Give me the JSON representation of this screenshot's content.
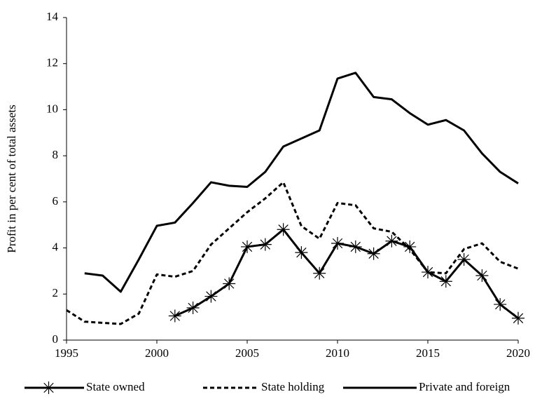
{
  "chart_data": {
    "type": "line",
    "y_label": "Profit in per cent of total assets",
    "x": [
      1995,
      1996,
      1997,
      1998,
      1999,
      2000,
      2001,
      2002,
      2003,
      2004,
      2005,
      2006,
      2007,
      2008,
      2009,
      2010,
      2011,
      2012,
      2013,
      2014,
      2015,
      2016,
      2017,
      2018,
      2019,
      2020
    ],
    "xlim": [
      1995,
      2020
    ],
    "xticks": [
      1995,
      2000,
      2005,
      2010,
      2015,
      2020
    ],
    "ylim": [
      0,
      14
    ],
    "yticks": [
      0,
      2,
      4,
      6,
      8,
      10,
      12,
      14
    ],
    "grid": false,
    "legend": "bottom",
    "series": [
      {
        "name": "State owned",
        "color": "#000000",
        "line_style": "solid",
        "marker": "asterisk",
        "values": [
          null,
          null,
          null,
          null,
          null,
          null,
          1.05,
          1.4,
          1.9,
          2.45,
          4.05,
          4.15,
          4.8,
          3.8,
          2.9,
          4.2,
          4.05,
          3.75,
          4.3,
          4.05,
          2.95,
          2.55,
          3.5,
          2.8,
          1.55,
          0.95
        ]
      },
      {
        "name": "State holding",
        "color": "#000000",
        "line_style": "dashed",
        "marker": "none",
        "values": [
          1.3,
          0.8,
          0.75,
          0.7,
          1.15,
          2.85,
          2.75,
          3.0,
          4.15,
          4.85,
          5.55,
          6.15,
          6.85,
          4.95,
          4.4,
          5.95,
          5.85,
          4.85,
          4.7,
          3.95,
          2.95,
          2.9,
          3.95,
          4.2,
          3.4,
          3.1
        ]
      },
      {
        "name": "Private and foreign",
        "color": "#000000",
        "line_style": "solid",
        "marker": "none",
        "values": [
          null,
          2.9,
          2.8,
          2.1,
          3.5,
          4.96,
          5.1,
          5.95,
          6.85,
          6.7,
          6.65,
          7.3,
          8.4,
          8.75,
          9.1,
          11.35,
          11.6,
          10.55,
          10.45,
          9.85,
          9.35,
          9.55,
          9.1,
          8.1,
          7.3,
          6.8
        ]
      }
    ]
  }
}
